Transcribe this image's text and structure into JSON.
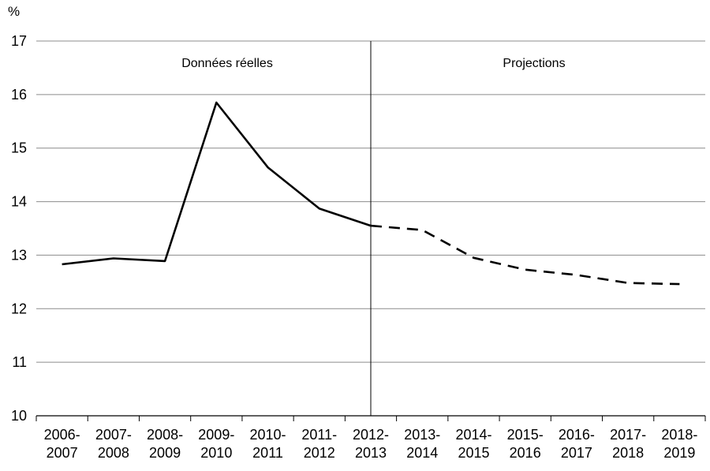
{
  "chart_data": {
    "type": "line",
    "title": "",
    "xlabel": "",
    "ylabel": "%",
    "ylim": [
      10,
      17
    ],
    "yticks": [
      10,
      11,
      12,
      13,
      14,
      15,
      16,
      17
    ],
    "grid": true,
    "categories": [
      [
        "2006-",
        "2007"
      ],
      [
        "2007-",
        "2008"
      ],
      [
        "2008-",
        "2009"
      ],
      [
        "2009-",
        "2010"
      ],
      [
        "2010-",
        "2011"
      ],
      [
        "2011-",
        "2012"
      ],
      [
        "2012-",
        "2013"
      ],
      [
        "2013-",
        "2014"
      ],
      [
        "2014-",
        "2015"
      ],
      [
        "2015-",
        "2016"
      ],
      [
        "2016-",
        "2017"
      ],
      [
        "2017-",
        "2018"
      ],
      [
        "2018-",
        "2019"
      ]
    ],
    "series": [
      {
        "style": "solid",
        "values": [
          12.83,
          12.94,
          12.89,
          15.85,
          14.64,
          13.87,
          13.55,
          null,
          null,
          null,
          null,
          null,
          null
        ]
      },
      {
        "style": "dashed",
        "values": [
          null,
          null,
          null,
          null,
          null,
          null,
          13.55,
          13.47,
          12.95,
          12.73,
          12.63,
          12.48,
          12.46
        ]
      }
    ],
    "divider_after_category": 6,
    "annotations": {
      "left": "Données réelles",
      "right": "Projections"
    },
    "colors": {
      "line": "#000000",
      "grid": "#8c8c8c",
      "axis": "#000000"
    }
  }
}
